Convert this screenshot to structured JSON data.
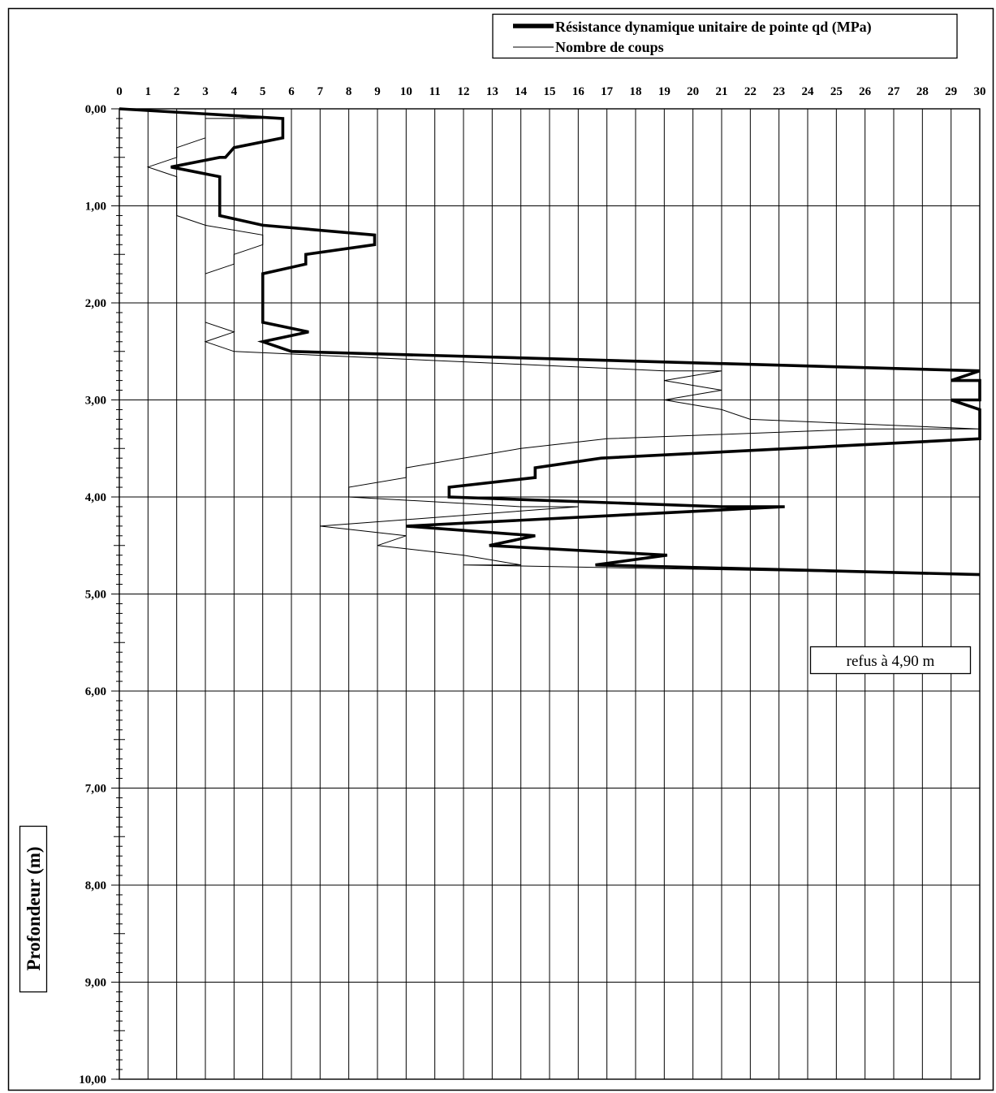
{
  "chart_data": {
    "type": "line",
    "orientation": "depth-profile",
    "x_axis_position": "top",
    "xlim": [
      0,
      30
    ],
    "ylim": [
      0,
      10
    ],
    "y_inverted": true,
    "grid": true,
    "legend_placement": "top-right",
    "ylabel": "Profondeur (m)",
    "annotation": "refus à 4,90 m",
    "x_tick_labels": [
      "0",
      "1",
      "2",
      "3",
      "4",
      "5",
      "6",
      "7",
      "8",
      "9",
      "10",
      "11",
      "12",
      "13",
      "14",
      "15",
      "16",
      "17",
      "18",
      "19",
      "20",
      "21",
      "22",
      "23",
      "24",
      "25",
      "26",
      "27",
      "28",
      "29",
      "30"
    ],
    "y_tick_labels": [
      "0,00",
      "1,00",
      "2,00",
      "3,00",
      "4,00",
      "5,00",
      "6,00",
      "7,00",
      "8,00",
      "9,00",
      "10,00"
    ],
    "series": [
      {
        "name": "Résistance dynamique unitaire de pointe qd (MPa)",
        "style": "thick",
        "color": "#000000",
        "points": [
          [
            0.0,
            0.0
          ],
          [
            5.7,
            0.1
          ],
          [
            5.7,
            0.3
          ],
          [
            4.0,
            0.4
          ],
          [
            3.7,
            0.5
          ],
          [
            3.5,
            0.5
          ],
          [
            1.8,
            0.6
          ],
          [
            3.5,
            0.7
          ],
          [
            3.5,
            1.0
          ],
          [
            3.5,
            1.1
          ],
          [
            5.0,
            1.2
          ],
          [
            8.9,
            1.3
          ],
          [
            8.9,
            1.4
          ],
          [
            6.5,
            1.5
          ],
          [
            6.5,
            1.6
          ],
          [
            5.0,
            1.7
          ],
          [
            5.0,
            2.1
          ],
          [
            5.0,
            2.2
          ],
          [
            6.6,
            2.3
          ],
          [
            5.0,
            2.4
          ],
          [
            6.0,
            2.5
          ],
          [
            30.0,
            2.7
          ],
          [
            29.0,
            2.8
          ],
          [
            30.0,
            2.8
          ],
          [
            30.0,
            3.0
          ],
          [
            29.0,
            3.0
          ],
          [
            30.0,
            3.1
          ],
          [
            30.0,
            3.3
          ],
          [
            30.0,
            3.4
          ],
          [
            16.8,
            3.6
          ],
          [
            14.5,
            3.7
          ],
          [
            14.5,
            3.8
          ],
          [
            11.5,
            3.9
          ],
          [
            11.5,
            4.0
          ],
          [
            21.0,
            4.1
          ],
          [
            23.2,
            4.1
          ],
          [
            10.0,
            4.3
          ],
          [
            14.5,
            4.4
          ],
          [
            12.9,
            4.5
          ],
          [
            19.1,
            4.6
          ],
          [
            16.6,
            4.7
          ],
          [
            30.0,
            4.8
          ]
        ]
      },
      {
        "name": "Nombre de coups",
        "style": "thin",
        "color": "#000000",
        "points": [
          [
            0.0,
            0.0
          ],
          [
            5.0,
            0.1
          ],
          [
            3.0,
            0.1
          ],
          [
            3.0,
            0.3
          ],
          [
            2.0,
            0.4
          ],
          [
            2.0,
            0.5
          ],
          [
            1.0,
            0.6
          ],
          [
            2.0,
            0.7
          ],
          [
            2.0,
            1.0
          ],
          [
            2.0,
            1.1
          ],
          [
            3.0,
            1.2
          ],
          [
            5.0,
            1.3
          ],
          [
            5.0,
            1.4
          ],
          [
            4.0,
            1.5
          ],
          [
            4.0,
            1.6
          ],
          [
            3.0,
            1.7
          ],
          [
            3.0,
            2.1
          ],
          [
            3.0,
            2.2
          ],
          [
            4.0,
            2.3
          ],
          [
            3.0,
            2.4
          ],
          [
            4.0,
            2.5
          ],
          [
            19.0,
            2.7
          ],
          [
            21.0,
            2.7
          ],
          [
            19.0,
            2.8
          ],
          [
            21.0,
            2.9
          ],
          [
            19.0,
            3.0
          ],
          [
            21.0,
            3.1
          ],
          [
            22.0,
            3.2
          ],
          [
            30.0,
            3.3
          ],
          [
            26.0,
            3.3
          ],
          [
            17.0,
            3.4
          ],
          [
            14.0,
            3.5
          ],
          [
            10.0,
            3.7
          ],
          [
            10.0,
            3.8
          ],
          [
            8.0,
            3.9
          ],
          [
            8.0,
            4.0
          ],
          [
            14.0,
            4.1
          ],
          [
            16.0,
            4.1
          ],
          [
            7.0,
            4.3
          ],
          [
            10.0,
            4.4
          ],
          [
            9.0,
            4.5
          ],
          [
            12.0,
            4.6
          ],
          [
            14.0,
            4.7
          ],
          [
            12.0,
            4.7
          ],
          [
            30.0,
            4.8
          ]
        ]
      }
    ]
  }
}
